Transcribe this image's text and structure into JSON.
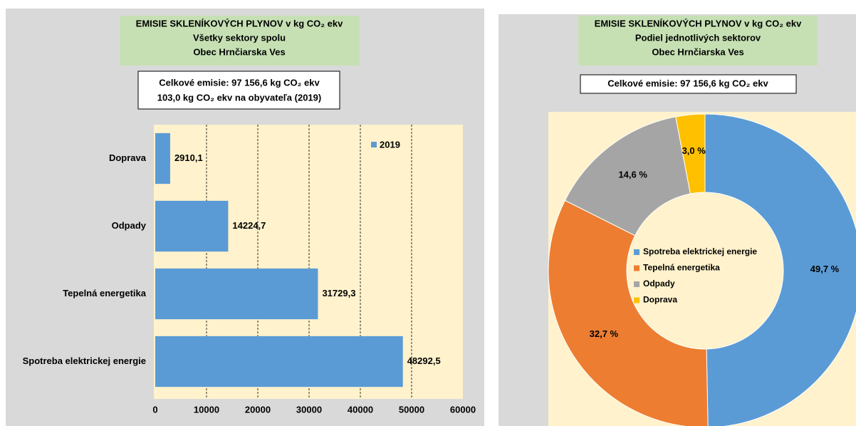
{
  "chart_data": [
    {
      "type": "bar",
      "orientation": "horizontal",
      "title": [
        "EMISIE SKLENÍKOVÝCH PLYNOV v kg CO₂ ekv",
        "Všetky sektory spolu",
        "Obec Hrnčiarska Ves"
      ],
      "annotations": [
        "Celkové emisie: 97 156,6 kg CO₂ ekv",
        "103,0 kg CO₂ ekv na obyvateľa (2019)"
      ],
      "categories": [
        "Doprava",
        "Odpady",
        "Tepelná energetika",
        "Spotreba elektrickej energie"
      ],
      "series": [
        {
          "name": "2019",
          "color": "#5b9bd5",
          "values": [
            2910.1,
            14224.7,
            31729.3,
            48292.5
          ],
          "value_labels": [
            "2910,1",
            "14224,7",
            "31729,3",
            "48292,5"
          ]
        }
      ],
      "xlim": [
        0,
        60000
      ],
      "xticks": [
        0,
        10000,
        20000,
        30000,
        40000,
        50000,
        60000
      ],
      "grid": true,
      "legend": "top-right"
    },
    {
      "type": "pie",
      "hole": true,
      "title": [
        "EMISIE SKLENÍKOVÝCH PLYNOV v kg CO₂ ekv",
        "Podiel jednotlivých sektorov",
        "Obec Hrnčiarska Ves"
      ],
      "annotations": [
        "Celkové emisie: 97 156,6 kg CO₂ ekv"
      ],
      "categories": [
        "Spotreba elektrickej energie",
        "Tepelná energetika",
        "Odpady",
        "Doprava"
      ],
      "values": [
        49.7,
        32.7,
        14.6,
        3.0
      ],
      "value_labels": [
        "49,7 %",
        "32,7 %",
        "14,6 %",
        "3,0 %"
      ],
      "colors": [
        "#5b9bd5",
        "#ed7d31",
        "#a5a5a5",
        "#ffc000"
      ],
      "legend": "center"
    }
  ]
}
